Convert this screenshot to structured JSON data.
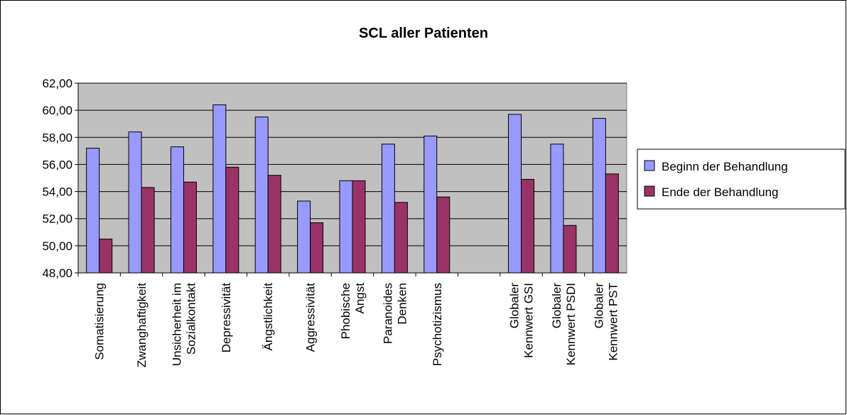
{
  "chart_data": {
    "type": "bar",
    "title": "SCL aller Patienten",
    "categories": [
      "Somatisierung",
      "Zwanghaftigkeit",
      "Unsicherheit im\nSozialkontakt",
      "Depressivität",
      "Ängstlichkeit",
      "Aggressivität",
      "Phobische\nAngst",
      "Paranoides\nDenken",
      "Psychotizismus",
      null,
      "Globaler\nKennwert GSI",
      "Globaler\nKennwert PSDI",
      "Globaler\nKennwert PST"
    ],
    "series": [
      {
        "name": "Beginn der Behandlung",
        "color": "#9999ff",
        "values": [
          57.2,
          58.4,
          57.3,
          60.4,
          59.5,
          53.3,
          54.8,
          57.5,
          58.1,
          null,
          59.7,
          57.5,
          59.4
        ]
      },
      {
        "name": "Ende der Behandlung",
        "color": "#993366",
        "values": [
          50.5,
          54.3,
          54.7,
          55.8,
          55.2,
          51.7,
          54.8,
          53.2,
          53.6,
          null,
          54.9,
          51.5,
          55.3
        ]
      }
    ],
    "ylim": [
      48,
      62
    ],
    "yticks": [
      {
        "value": 48,
        "label": "48,00"
      },
      {
        "value": 50,
        "label": "50,00"
      },
      {
        "value": 52,
        "label": "52,00"
      },
      {
        "value": 54,
        "label": "54,00"
      },
      {
        "value": 56,
        "label": "56,00"
      },
      {
        "value": 58,
        "label": "58,00"
      },
      {
        "value": 60,
        "label": "60,00"
      },
      {
        "value": 62,
        "label": "62,00"
      }
    ],
    "grid": true,
    "legend": "right"
  }
}
